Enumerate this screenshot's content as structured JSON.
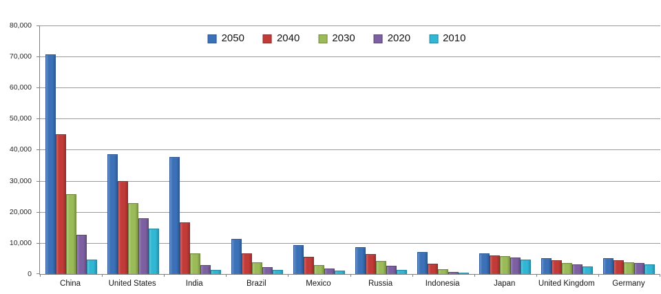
{
  "chart_data": {
    "type": "bar",
    "title": "",
    "categories": [
      "China",
      "United States",
      "India",
      "Brazil",
      "Mexico",
      "Russia",
      "Indonesia",
      "Japan",
      "United Kingdom",
      "Germany"
    ],
    "series": [
      {
        "name": "2050",
        "color": "#3B71B8",
        "border_color": "#2C5591",
        "values": [
          70710,
          38514,
          37668,
          11366,
          9340,
          8580,
          7010,
          6677,
          5133,
          5024
        ]
      },
      {
        "name": "2040",
        "color": "#C13B38",
        "border_color": "#8E2B29",
        "values": [
          45022,
          29823,
          16510,
          6631,
          5471,
          6320,
          3286,
          6042,
          4344,
          4388
        ]
      },
      {
        "name": "2030",
        "color": "#9BBB59",
        "border_color": "#71893F",
        "values": [
          25610,
          22817,
          6683,
          3720,
          2985,
          4265,
          1479,
          5814,
          3595,
          3761
        ]
      },
      {
        "name": "2020",
        "color": "#7D60A2",
        "border_color": "#5A4575",
        "values": [
          12630,
          17978,
          2848,
          2194,
          1742,
          2554,
          752,
          5224,
          3101,
          3519
        ]
      },
      {
        "name": "2010",
        "color": "#31B6D4",
        "border_color": "#2386A0",
        "values": [
          4667,
          14535,
          1256,
          1346,
          1009,
          1371,
          419,
          4604,
          2546,
          3083
        ]
      }
    ],
    "xlabel": "",
    "ylabel": "",
    "ylim": [
      0,
      80000
    ],
    "ytick_step": 10000,
    "ytick_labels": [
      "0",
      "10,000",
      "20,000",
      "30,000",
      "40,000",
      "50,000",
      "60,000",
      "70,000",
      "80,000"
    ],
    "grid": true,
    "legend_position": "top-center",
    "legend_entries": [
      "2050",
      "2040",
      "2030",
      "2020",
      "2010"
    ]
  }
}
